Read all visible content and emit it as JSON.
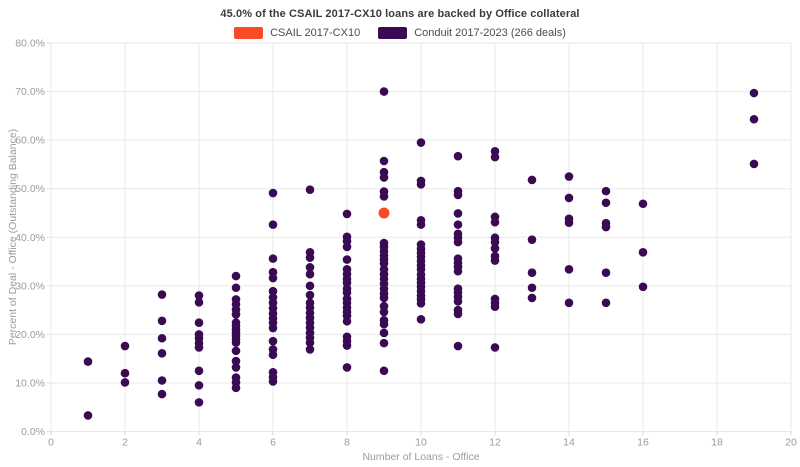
{
  "chart_data": {
    "type": "scatter",
    "title": "45.0% of the CSAIL 2017-CX10 loans are backed by Office collateral",
    "xlabel": "Number of Loans - Office",
    "ylabel": "Percent of Deal - Office (Outstanding Balance)",
    "xlim": [
      0,
      20
    ],
    "ylim": [
      0,
      80
    ],
    "x_tick_step": 2,
    "y_tick_step": 10,
    "y_tick_format": "percent_one_decimal",
    "grid": true,
    "legend_position": "top-center",
    "colors": {
      "grid": "#e8e8e8",
      "tick": "#d9d9d9",
      "tick_label": "#9b9b9b",
      "axis_title": "#9b9b9b",
      "title": "#3c3c3c",
      "legend_label": "#4d4d4d"
    },
    "series": [
      {
        "id": "csail",
        "name": "CSAIL 2017-CX10",
        "color": "#fa4b27",
        "marker_radius": 5.5,
        "points": [
          [
            9,
            45.0
          ]
        ]
      },
      {
        "id": "conduit",
        "name": "Conduit 2017-2023 (266 deals)",
        "color": "#3a0a52",
        "marker_radius": 4.3,
        "points": [
          [
            1,
            14.4
          ],
          [
            1,
            3.3
          ],
          [
            2,
            17.6
          ],
          [
            2,
            12.0
          ],
          [
            2,
            10.1
          ],
          [
            3,
            28.2
          ],
          [
            3,
            22.8
          ],
          [
            3,
            19.2
          ],
          [
            3,
            16.1
          ],
          [
            3,
            10.5
          ],
          [
            3,
            7.7
          ],
          [
            4,
            28.0
          ],
          [
            4,
            26.6
          ],
          [
            4,
            22.4
          ],
          [
            4,
            20.0
          ],
          [
            4,
            19.2
          ],
          [
            4,
            18.2
          ],
          [
            4,
            17.3
          ],
          [
            4,
            12.5
          ],
          [
            4,
            9.5
          ],
          [
            4,
            6.0
          ],
          [
            5,
            32.0
          ],
          [
            5,
            29.6
          ],
          [
            5,
            27.2
          ],
          [
            5,
            26.2
          ],
          [
            5,
            25.1
          ],
          [
            5,
            24.1
          ],
          [
            5,
            22.4
          ],
          [
            5,
            21.7
          ],
          [
            5,
            21.0
          ],
          [
            5,
            20.3
          ],
          [
            5,
            19.7
          ],
          [
            5,
            19.0
          ],
          [
            5,
            18.3
          ],
          [
            5,
            16.6
          ],
          [
            5,
            14.5
          ],
          [
            5,
            13.2
          ],
          [
            5,
            11.1
          ],
          [
            5,
            10.1
          ],
          [
            5,
            9.0
          ],
          [
            6,
            49.1
          ],
          [
            6,
            42.6
          ],
          [
            6,
            35.6
          ],
          [
            6,
            32.8
          ],
          [
            6,
            31.6
          ],
          [
            6,
            28.9
          ],
          [
            6,
            27.6
          ],
          [
            6,
            26.5
          ],
          [
            6,
            25.4
          ],
          [
            6,
            24.3
          ],
          [
            6,
            23.3
          ],
          [
            6,
            22.4
          ],
          [
            6,
            21.3
          ],
          [
            6,
            18.6
          ],
          [
            6,
            16.9
          ],
          [
            6,
            15.8
          ],
          [
            6,
            12.2
          ],
          [
            6,
            11.2
          ],
          [
            6,
            10.3
          ],
          [
            7,
            49.8
          ],
          [
            7,
            36.9
          ],
          [
            7,
            35.8
          ],
          [
            7,
            33.8
          ],
          [
            7,
            32.4
          ],
          [
            7,
            30.0
          ],
          [
            7,
            28.1
          ],
          [
            7,
            26.5
          ],
          [
            7,
            25.5
          ],
          [
            7,
            24.4
          ],
          [
            7,
            23.4
          ],
          [
            7,
            22.4
          ],
          [
            7,
            21.4
          ],
          [
            7,
            20.3
          ],
          [
            7,
            19.3
          ],
          [
            7,
            18.3
          ],
          [
            7,
            16.9
          ],
          [
            8,
            44.8
          ],
          [
            8,
            40.1
          ],
          [
            8,
            39.2
          ],
          [
            8,
            38.0
          ],
          [
            8,
            35.4
          ],
          [
            8,
            33.4
          ],
          [
            8,
            32.4
          ],
          [
            8,
            31.4
          ],
          [
            8,
            30.6
          ],
          [
            8,
            29.4
          ],
          [
            8,
            28.6
          ],
          [
            8,
            27.3
          ],
          [
            8,
            26.5
          ],
          [
            8,
            25.5
          ],
          [
            8,
            24.6
          ],
          [
            8,
            23.8
          ],
          [
            8,
            22.7
          ],
          [
            8,
            19.5
          ],
          [
            8,
            18.6
          ],
          [
            8,
            17.7
          ],
          [
            8,
            13.2
          ],
          [
            9,
            70.0
          ],
          [
            9,
            55.7
          ],
          [
            9,
            53.4
          ],
          [
            9,
            52.3
          ],
          [
            9,
            49.4
          ],
          [
            9,
            48.4
          ],
          [
            9,
            38.8
          ],
          [
            9,
            38.0
          ],
          [
            9,
            37.1
          ],
          [
            9,
            36.2
          ],
          [
            9,
            35.4
          ],
          [
            9,
            34.6
          ],
          [
            9,
            33.4
          ],
          [
            9,
            32.4
          ],
          [
            9,
            31.4
          ],
          [
            9,
            30.4
          ],
          [
            9,
            29.4
          ],
          [
            9,
            28.4
          ],
          [
            9,
            27.5
          ],
          [
            9,
            25.8
          ],
          [
            9,
            24.6
          ],
          [
            9,
            22.9
          ],
          [
            9,
            22.1
          ],
          [
            9,
            20.3
          ],
          [
            9,
            18.2
          ],
          [
            9,
            12.5
          ],
          [
            10,
            59.5
          ],
          [
            10,
            51.6
          ],
          [
            10,
            50.9
          ],
          [
            10,
            43.5
          ],
          [
            10,
            42.6
          ],
          [
            10,
            38.5
          ],
          [
            10,
            37.6
          ],
          [
            10,
            36.8
          ],
          [
            10,
            36.0
          ],
          [
            10,
            35.1
          ],
          [
            10,
            34.2
          ],
          [
            10,
            33.4
          ],
          [
            10,
            32.3
          ],
          [
            10,
            31.4
          ],
          [
            10,
            30.6
          ],
          [
            10,
            29.8
          ],
          [
            10,
            28.9
          ],
          [
            10,
            28.0
          ],
          [
            10,
            27.2
          ],
          [
            10,
            26.4
          ],
          [
            10,
            23.1
          ],
          [
            11,
            56.7
          ],
          [
            11,
            49.5
          ],
          [
            11,
            48.7
          ],
          [
            11,
            44.9
          ],
          [
            11,
            42.6
          ],
          [
            11,
            40.7
          ],
          [
            11,
            39.9
          ],
          [
            11,
            39.0
          ],
          [
            11,
            35.6
          ],
          [
            11,
            34.7
          ],
          [
            11,
            33.9
          ],
          [
            11,
            33.0
          ],
          [
            11,
            29.4
          ],
          [
            11,
            28.6
          ],
          [
            11,
            27.7
          ],
          [
            11,
            26.8
          ],
          [
            11,
            25.0
          ],
          [
            11,
            24.2
          ],
          [
            11,
            17.6
          ],
          [
            12,
            57.7
          ],
          [
            12,
            56.5
          ],
          [
            12,
            44.2
          ],
          [
            12,
            43.1
          ],
          [
            12,
            39.9
          ],
          [
            12,
            39.0
          ],
          [
            12,
            37.7
          ],
          [
            12,
            36.1
          ],
          [
            12,
            35.2
          ],
          [
            12,
            27.3
          ],
          [
            12,
            26.5
          ],
          [
            12,
            25.7
          ],
          [
            12,
            17.3
          ],
          [
            13,
            51.8
          ],
          [
            13,
            39.5
          ],
          [
            13,
            32.7
          ],
          [
            13,
            29.6
          ],
          [
            13,
            27.5
          ],
          [
            14,
            52.5
          ],
          [
            14,
            48.1
          ],
          [
            14,
            43.8
          ],
          [
            14,
            43.0
          ],
          [
            14,
            33.4
          ],
          [
            14,
            26.5
          ],
          [
            15,
            49.5
          ],
          [
            15,
            47.1
          ],
          [
            15,
            42.9
          ],
          [
            15,
            42.1
          ],
          [
            15,
            32.7
          ],
          [
            15,
            26.5
          ],
          [
            16,
            46.9
          ],
          [
            16,
            36.9
          ],
          [
            16,
            29.8
          ],
          [
            19,
            69.7
          ],
          [
            19,
            64.3
          ],
          [
            19,
            55.1
          ]
        ]
      }
    ]
  }
}
